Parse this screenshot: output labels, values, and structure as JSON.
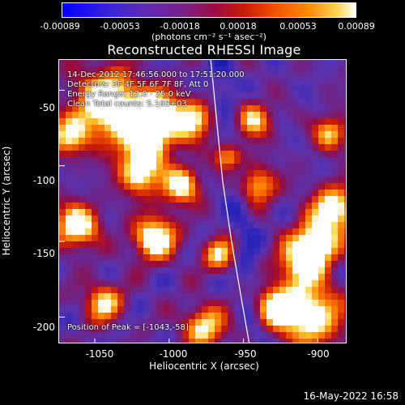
{
  "chart_data": {
    "type": "heatmap",
    "title": "Reconstructed RHESSI Image",
    "xlabel": "Heliocentric X (arcsec)",
    "ylabel": "Heliocentric Y (arcsec)",
    "x_range": [
      -1074,
      -880
    ],
    "y_range": [
      -218,
      -30
    ],
    "x_ticks": [
      "-1050",
      "-1000",
      "-950",
      "-900"
    ],
    "y_ticks": [
      "-50",
      "-100",
      "-150",
      "-200"
    ],
    "colorbar": {
      "min": -0.00089,
      "max": 0.00089,
      "tick_labels": [
        "-0.00089",
        "-0.00053",
        "-0.00018",
        "0.00018",
        "0.00053",
        "0.00089"
      ],
      "unit_label": "(photons cm⁻² s⁻¹ asec⁻²)"
    },
    "overlay_text": [
      "14-Dec-2012 17:46:56.000 to 17:51:20.000",
      "Detectors: 3F 4F 5F 6F 7F 8F, Att 0",
      "Energy Range: 12.0 - 25.0 keV",
      "Clean     Total counts: 5.16E+03",
      "Position of Peak = [-1043,-58]"
    ],
    "peak_position": [
      -1043,
      -58
    ],
    "limb_curve": [
      [
        -972,
        -30
      ],
      [
        -968,
        -70
      ],
      [
        -964,
        -110
      ],
      [
        -958,
        -150
      ],
      [
        -951,
        -190
      ],
      [
        -946,
        -218
      ]
    ],
    "grid": false,
    "legend": "colorbar-top"
  },
  "page": {
    "timestamp": "16-May-2022 16:58"
  }
}
